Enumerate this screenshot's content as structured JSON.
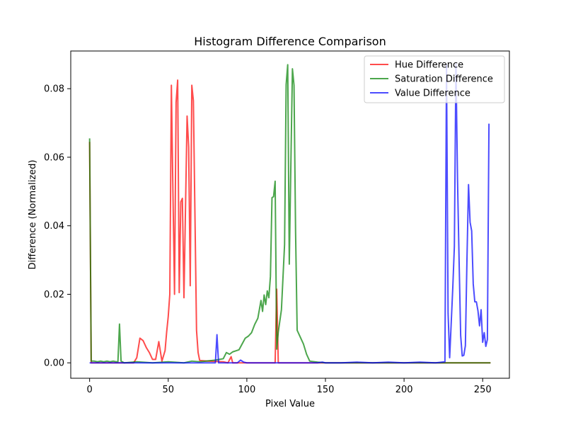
{
  "chart_data": {
    "type": "line",
    "title": "Histogram Difference Comparison",
    "xlabel": "Pixel Value",
    "ylabel": "Difference (Normalized)",
    "xlim": [
      -12,
      267
    ],
    "ylim": [
      -0.0045,
      0.091
    ],
    "xticks": [
      0,
      50,
      100,
      150,
      200,
      250
    ],
    "xtick_labels": [
      "0",
      "50",
      "100",
      "150",
      "200",
      "250"
    ],
    "yticks": [
      0,
      0.02,
      0.04,
      0.06,
      0.08
    ],
    "ytick_labels": [
      "0.00",
      "0.02",
      "0.04",
      "0.06",
      "0.08"
    ],
    "grid": false,
    "legend_position": "top-right",
    "series": [
      {
        "name": "Hue Difference",
        "color": "#ff0000",
        "points": [
          [
            0,
            0.0645
          ],
          [
            1,
            0
          ],
          [
            2,
            0
          ],
          [
            28,
            0
          ],
          [
            30,
            0.0015
          ],
          [
            32,
            0.0072
          ],
          [
            34,
            0.0065
          ],
          [
            36,
            0.0045
          ],
          [
            38,
            0.003
          ],
          [
            40,
            0.001
          ],
          [
            42,
            0.001
          ],
          [
            44,
            0.0062
          ],
          [
            46,
            0.0005
          ],
          [
            48,
            0.0036
          ],
          [
            49,
            0.009
          ],
          [
            50,
            0.0135
          ],
          [
            51,
            0.02
          ],
          [
            52,
            0.081
          ],
          [
            53,
            0.0495
          ],
          [
            54,
            0.02
          ],
          [
            55,
            0.076
          ],
          [
            56,
            0.0825
          ],
          [
            57,
            0.0205
          ],
          [
            58,
            0.047
          ],
          [
            59,
            0.048
          ],
          [
            60,
            0.019
          ],
          [
            62,
            0.072
          ],
          [
            63,
            0.063
          ],
          [
            64,
            0.0225
          ],
          [
            65,
            0.081
          ],
          [
            66,
            0.0765
          ],
          [
            68,
            0.0095
          ],
          [
            69,
            0.003
          ],
          [
            70,
            0.0007
          ],
          [
            75,
            0.0005
          ],
          [
            85,
            0.0003
          ],
          [
            88,
            0
          ],
          [
            90,
            0.0018
          ],
          [
            91,
            0
          ],
          [
            118,
            0
          ],
          [
            119,
            0.0215
          ],
          [
            120,
            0
          ],
          [
            121,
            0
          ],
          [
            255,
            0
          ]
        ]
      },
      {
        "name": "Saturation Difference",
        "color": "#008000",
        "points": [
          [
            0,
            0.0655
          ],
          [
            1,
            0.0005
          ],
          [
            3,
            0.0005
          ],
          [
            5,
            0.0003
          ],
          [
            7,
            0.0005
          ],
          [
            9,
            0.0003
          ],
          [
            11,
            0.0005
          ],
          [
            13,
            0.0003
          ],
          [
            15,
            0.0005
          ],
          [
            17,
            0.0003
          ],
          [
            18,
            0.0003
          ],
          [
            19,
            0.0113
          ],
          [
            20,
            0.0005
          ],
          [
            22,
            0
          ],
          [
            30,
            0.0003
          ],
          [
            40,
            0
          ],
          [
            50,
            0.0003
          ],
          [
            60,
            0
          ],
          [
            65,
            0.0005
          ],
          [
            70,
            0.0003
          ],
          [
            80,
            0.0008
          ],
          [
            85,
            0.0012
          ],
          [
            87,
            0.003
          ],
          [
            89,
            0.0025
          ],
          [
            91,
            0.0032
          ],
          [
            93,
            0.0035
          ],
          [
            95,
            0.0038
          ],
          [
            97,
            0.0055
          ],
          [
            99,
            0.0072
          ],
          [
            101,
            0.0078
          ],
          [
            103,
            0.0088
          ],
          [
            105,
            0.0112
          ],
          [
            107,
            0.013
          ],
          [
            109,
            0.0182
          ],
          [
            110,
            0.015
          ],
          [
            111,
            0.0198
          ],
          [
            112,
            0.017
          ],
          [
            113,
            0.021
          ],
          [
            114,
            0.019
          ],
          [
            115,
            0.0252
          ],
          [
            116,
            0.0482
          ],
          [
            117,
            0.0485
          ],
          [
            118,
            0.053
          ],
          [
            119,
            0.004
          ],
          [
            120,
            0.009
          ],
          [
            122,
            0.0155
          ],
          [
            124,
            0.0345
          ],
          [
            125,
            0.0812
          ],
          [
            126,
            0.087
          ],
          [
            127,
            0.0288
          ],
          [
            128,
            0.0578
          ],
          [
            129,
            0.0858
          ],
          [
            130,
            0.081
          ],
          [
            131,
            0.0382
          ],
          [
            132,
            0.0095
          ],
          [
            134,
            0.0075
          ],
          [
            136,
            0.0055
          ],
          [
            138,
            0.0025
          ],
          [
            140,
            0.0005
          ],
          [
            145,
            0.0002
          ],
          [
            150,
            0
          ],
          [
            255,
            0
          ]
        ]
      },
      {
        "name": "Value Difference",
        "color": "#0000ff",
        "points": [
          [
            0,
            0
          ],
          [
            80,
            0
          ],
          [
            81,
            0.0082
          ],
          [
            82,
            0
          ],
          [
            94,
            0
          ],
          [
            96,
            0.0008
          ],
          [
            98,
            0.0002
          ],
          [
            100,
            0
          ],
          [
            110,
            0
          ],
          [
            120,
            0
          ],
          [
            130,
            0
          ],
          [
            145,
            0
          ],
          [
            148,
            0.0002
          ],
          [
            150,
            0
          ],
          [
            160,
            0
          ],
          [
            170,
            0.0002
          ],
          [
            180,
            0
          ],
          [
            190,
            0.0002
          ],
          [
            200,
            0
          ],
          [
            210,
            0.0002
          ],
          [
            220,
            0
          ],
          [
            226,
            0.0003
          ],
          [
            227,
            0.087
          ],
          [
            228,
            0.0145
          ],
          [
            229,
            0.0015
          ],
          [
            231,
            0.022
          ],
          [
            232,
            0.034
          ],
          [
            233,
            0.0872
          ],
          [
            234,
            0.0535
          ],
          [
            235,
            0.03
          ],
          [
            236,
            0.008
          ],
          [
            237,
            0.002
          ],
          [
            238,
            0.0022
          ],
          [
            239,
            0.005
          ],
          [
            240,
            0.03
          ],
          [
            241,
            0.052
          ],
          [
            242,
            0.041
          ],
          [
            243,
            0.0385
          ],
          [
            244,
            0.023
          ],
          [
            245,
            0.0178
          ],
          [
            246,
            0.0178
          ],
          [
            247,
            0.0152
          ],
          [
            248,
            0.0108
          ],
          [
            249,
            0.0155
          ],
          [
            250,
            0.006
          ],
          [
            251,
            0.0088
          ],
          [
            252,
            0.0048
          ],
          [
            253,
            0.0068
          ],
          [
            254,
            0.0698
          ]
        ]
      }
    ]
  }
}
